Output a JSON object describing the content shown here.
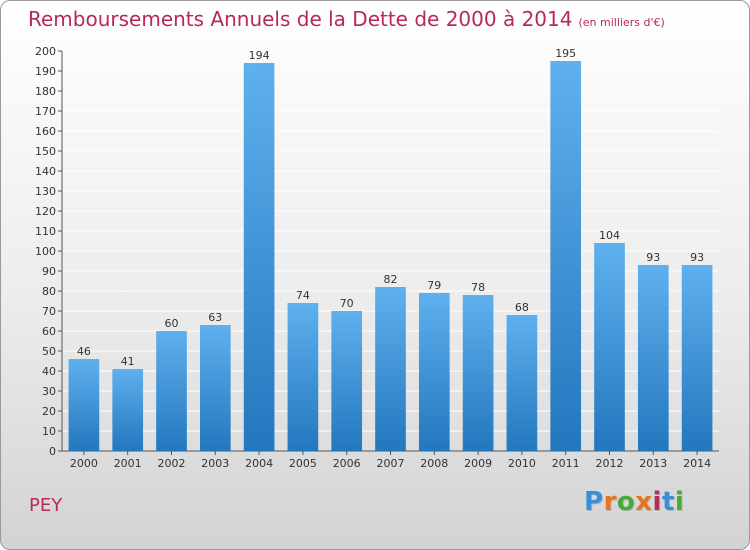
{
  "header": {
    "title": "Remboursements Annuels de la Dette de 2000 à 2014",
    "unit": "(en milliers d'€)"
  },
  "footer": {
    "commune": "PEY",
    "logo": "Proxiti",
    "logo_colors": [
      "#3a8fd9",
      "#e8731c",
      "#49a935",
      "#e8731c",
      "#b72a57",
      "#3a8fd9",
      "#49a935"
    ]
  },
  "colors": {
    "bar_light": "#5fb0ee",
    "bar_dark": "#2377bd",
    "accent": "#b72a57",
    "grid": "#ffffff"
  },
  "chart_data": {
    "type": "bar",
    "categories": [
      "2000",
      "2001",
      "2002",
      "2003",
      "2004",
      "2005",
      "2006",
      "2007",
      "2008",
      "2009",
      "2010",
      "2011",
      "2012",
      "2013",
      "2014"
    ],
    "values": [
      46,
      41,
      60,
      63,
      194,
      74,
      70,
      82,
      79,
      78,
      68,
      195,
      104,
      93,
      93
    ],
    "ylim": [
      0,
      200
    ],
    "ytick_step": 10,
    "grid": true,
    "data_labels": true
  }
}
